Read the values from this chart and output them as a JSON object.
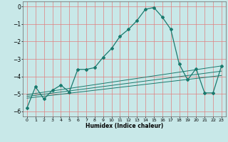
{
  "title": "",
  "xlabel": "Humidex (Indice chaleur)",
  "background_color": "#c8e8e8",
  "grid_color": "#e08080",
  "line_color": "#1a7a6e",
  "xlim": [
    -0.5,
    23.5
  ],
  "ylim": [
    -6.3,
    0.3
  ],
  "x_ticks": [
    0,
    1,
    2,
    3,
    4,
    5,
    6,
    7,
    8,
    9,
    10,
    11,
    12,
    13,
    14,
    15,
    16,
    17,
    18,
    19,
    20,
    21,
    22,
    23
  ],
  "y_ticks": [
    0,
    -1,
    -2,
    -3,
    -4,
    -5,
    -6
  ],
  "main_line_x": [
    0,
    1,
    2,
    3,
    4,
    5,
    6,
    7,
    8,
    9,
    10,
    11,
    12,
    13,
    14,
    15,
    16,
    17,
    18,
    19,
    20,
    21,
    22,
    23
  ],
  "main_line_y": [
    -5.8,
    -4.6,
    -5.3,
    -4.8,
    -4.5,
    -4.9,
    -3.6,
    -3.6,
    -3.5,
    -2.9,
    -2.4,
    -1.7,
    -1.3,
    -0.8,
    -0.15,
    -0.05,
    -0.6,
    -1.3,
    -3.3,
    -4.2,
    -3.55,
    -4.95,
    -4.95,
    -3.4
  ],
  "line2_x": [
    0,
    23
  ],
  "line2_y": [
    -5.05,
    -3.4
  ],
  "line3_x": [
    0,
    23
  ],
  "line3_y": [
    -5.15,
    -3.7
  ],
  "line4_x": [
    0,
    23
  ],
  "line4_y": [
    -5.25,
    -3.95
  ]
}
